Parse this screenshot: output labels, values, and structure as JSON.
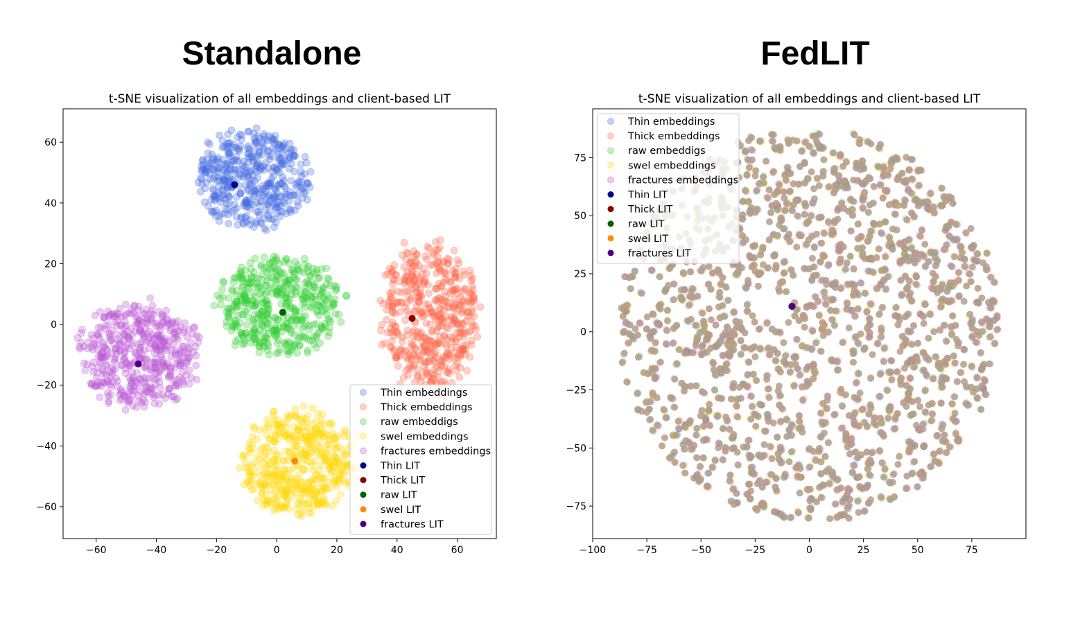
{
  "panels": {
    "left_title": "Standalone",
    "right_title": "FedLIT"
  },
  "chart_data": [
    {
      "type": "scatter",
      "title": "t-SNE visualization of all embeddings and client-based LIT",
      "xlim": [
        -71,
        73
      ],
      "ylim": [
        -70.5,
        71
      ],
      "xticks": [
        -60,
        -40,
        -20,
        0,
        20,
        40,
        60
      ],
      "yticks": [
        -60,
        -40,
        -20,
        0,
        20,
        40,
        60
      ],
      "grid": false,
      "legend_position": "lower-right",
      "clusters": [
        {
          "name": "Thin embeddings",
          "color": "#4169e1",
          "center": [
            -8,
            48
          ],
          "radius": [
            18,
            16
          ],
          "count": 450
        },
        {
          "name": "Thick embeddings",
          "color": "#ff6347",
          "center": [
            51,
            3
          ],
          "radius": [
            16,
            24
          ],
          "count": 500
        },
        {
          "name": "raw embeddigs",
          "color": "#32cd32",
          "center": [
            1,
            6
          ],
          "radius": [
            20,
            16
          ],
          "count": 480
        },
        {
          "name": "swel embeddings",
          "color": "#ffd700",
          "center": [
            7,
            -45
          ],
          "radius": [
            19,
            17
          ],
          "count": 480
        },
        {
          "name": "fractures embeddings",
          "color": "#ba55d3",
          "center": [
            -46,
            -10
          ],
          "radius": [
            19,
            17
          ],
          "count": 480
        }
      ],
      "lit_points": [
        {
          "name": "Thin LIT",
          "color": "#00008b",
          "x": -14,
          "y": 46
        },
        {
          "name": "Thick LIT",
          "color": "#8b0000",
          "x": 45,
          "y": 2
        },
        {
          "name": "raw LIT",
          "color": "#006400",
          "x": 2,
          "y": 4
        },
        {
          "name": "swel LIT",
          "color": "#ff8c00",
          "x": 6,
          "y": -45
        },
        {
          "name": "fractures LIT",
          "color": "#4b0082",
          "x": -46,
          "y": -13
        }
      ]
    },
    {
      "type": "scatter",
      "title": "t-SNE visualization of all embeddings and client-based LIT",
      "xlim": [
        -100,
        100
      ],
      "ylim": [
        -89,
        96
      ],
      "xticks": [
        -100,
        -75,
        -50,
        -25,
        0,
        25,
        50,
        75
      ],
      "yticks": [
        -75,
        -50,
        -25,
        0,
        25,
        50,
        75
      ],
      "grid": false,
      "legend_position": "upper-left",
      "cloud": {
        "center": [
          0,
          3
        ],
        "radius": [
          88,
          85
        ],
        "count": 1400,
        "mixed_color": "#b49e8c"
      },
      "series": [
        {
          "name": "Thin embeddings",
          "color": "#4169e1"
        },
        {
          "name": "Thick embeddings",
          "color": "#ff6347"
        },
        {
          "name": "raw embeddigs",
          "color": "#32cd32"
        },
        {
          "name": "swel embeddings",
          "color": "#ffd700"
        },
        {
          "name": "fractures embeddings",
          "color": "#ba55d3"
        }
      ],
      "lit_points": [
        {
          "name": "Thin LIT",
          "color": "#00008b",
          "x": -8,
          "y": 11
        },
        {
          "name": "Thick LIT",
          "color": "#8b0000",
          "x": -8,
          "y": 11
        },
        {
          "name": "raw LIT",
          "color": "#006400",
          "x": -8,
          "y": 11
        },
        {
          "name": "swel LIT",
          "color": "#ff8c00",
          "x": -8,
          "y": 11
        },
        {
          "name": "fractures LIT",
          "color": "#4b0082",
          "x": -8,
          "y": 11
        }
      ]
    }
  ]
}
